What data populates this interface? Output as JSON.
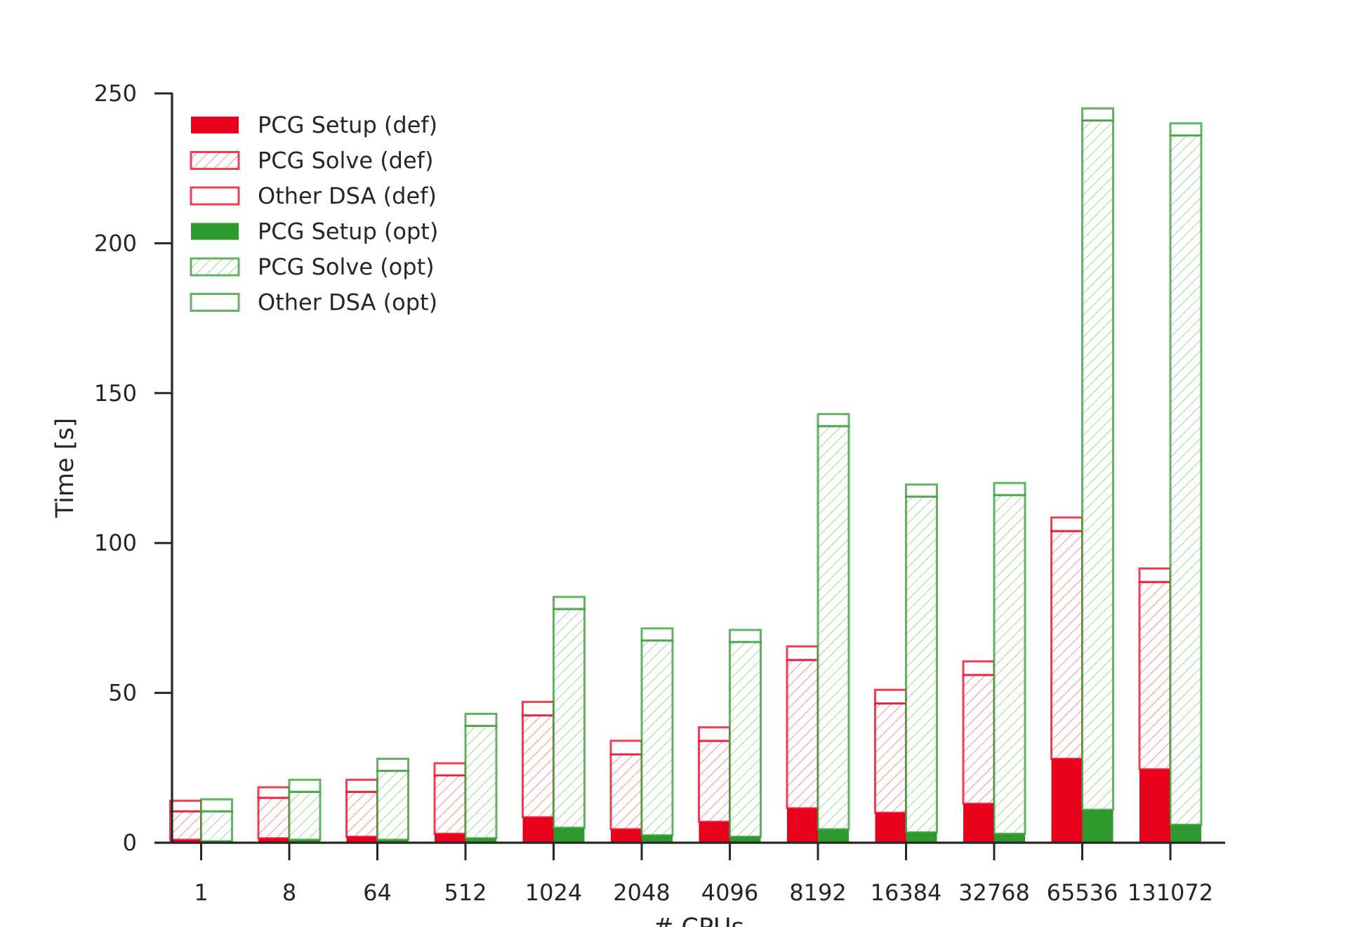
{
  "chart_data": {
    "type": "bar",
    "stacked": true,
    "grouped": true,
    "xlabel": "# CPUs",
    "ylabel": "Time [s]",
    "ylim": [
      0,
      250
    ],
    "yticks": [
      0,
      50,
      100,
      150,
      200,
      250
    ],
    "grid": false,
    "legend_position": "top-left",
    "categories": [
      "1",
      "8",
      "64",
      "512",
      "1024",
      "2048",
      "4096",
      "8192",
      "16384",
      "32768",
      "65536",
      "131072"
    ],
    "groups": [
      {
        "name": "def",
        "color": "#e8001c",
        "series": [
          {
            "name": "PCG Setup (def)",
            "style": "solid",
            "values": [
              1.0,
              1.5,
              2.0,
              3.0,
              8.5,
              4.5,
              7.0,
              11.5,
              10.0,
              13.0,
              28.0,
              24.5
            ]
          },
          {
            "name": "PCG Solve (def)",
            "style": "hatch",
            "values": [
              9.5,
              13.5,
              15.0,
              19.5,
              34.0,
              25.0,
              27.0,
              49.5,
              36.5,
              43.0,
              76.0,
              62.5
            ]
          },
          {
            "name": "Other DSA (def)",
            "style": "outline",
            "values": [
              3.5,
              3.5,
              4.0,
              4.0,
              4.5,
              4.5,
              4.5,
              4.5,
              4.5,
              4.5,
              4.5,
              4.5
            ]
          }
        ]
      },
      {
        "name": "opt",
        "color": "#2e9a2e",
        "series": [
          {
            "name": "PCG Setup (opt)",
            "style": "solid",
            "values": [
              0.5,
              1.0,
              1.0,
              1.5,
              5.0,
              2.5,
              2.0,
              4.5,
              3.5,
              3.0,
              11.0,
              6.0
            ]
          },
          {
            "name": "PCG Solve (opt)",
            "style": "hatch",
            "values": [
              10.0,
              16.0,
              23.0,
              37.5,
              73.0,
              65.0,
              65.0,
              134.5,
              112.0,
              113.0,
              230.0,
              230.0
            ]
          },
          {
            "name": "Other DSA (opt)",
            "style": "outline",
            "values": [
              4.0,
              4.0,
              4.0,
              4.0,
              4.0,
              4.0,
              4.0,
              4.0,
              4.0,
              4.0,
              4.0,
              4.0
            ]
          }
        ]
      }
    ]
  }
}
